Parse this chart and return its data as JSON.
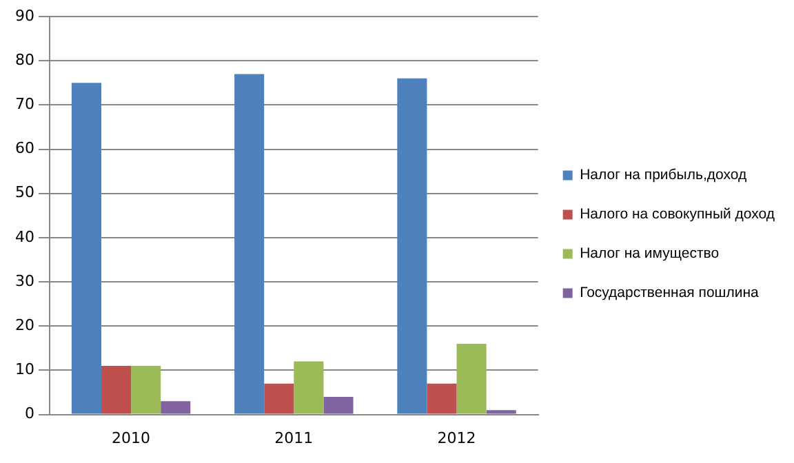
{
  "chart_data": {
    "type": "bar",
    "categories": [
      "2010",
      "2011",
      "2012"
    ],
    "series": [
      {
        "name": "Налог на прибыль,доход",
        "color": "#4f81bd",
        "values": [
          75,
          77,
          76
        ]
      },
      {
        "name": "Налого на совокупный доход",
        "color": "#c0504d",
        "values": [
          11,
          7,
          7
        ]
      },
      {
        "name": "Налог на имущество",
        "color": "#9bbb59",
        "values": [
          11,
          12,
          16
        ]
      },
      {
        "name": "Государственная пошлина",
        "color": "#8064a2",
        "values": [
          3,
          4,
          1
        ]
      }
    ],
    "ylim": [
      0,
      90
    ],
    "yticks": [
      0,
      10,
      20,
      30,
      40,
      50,
      60,
      70,
      80,
      90
    ],
    "grid": "y",
    "legend": "right"
  }
}
